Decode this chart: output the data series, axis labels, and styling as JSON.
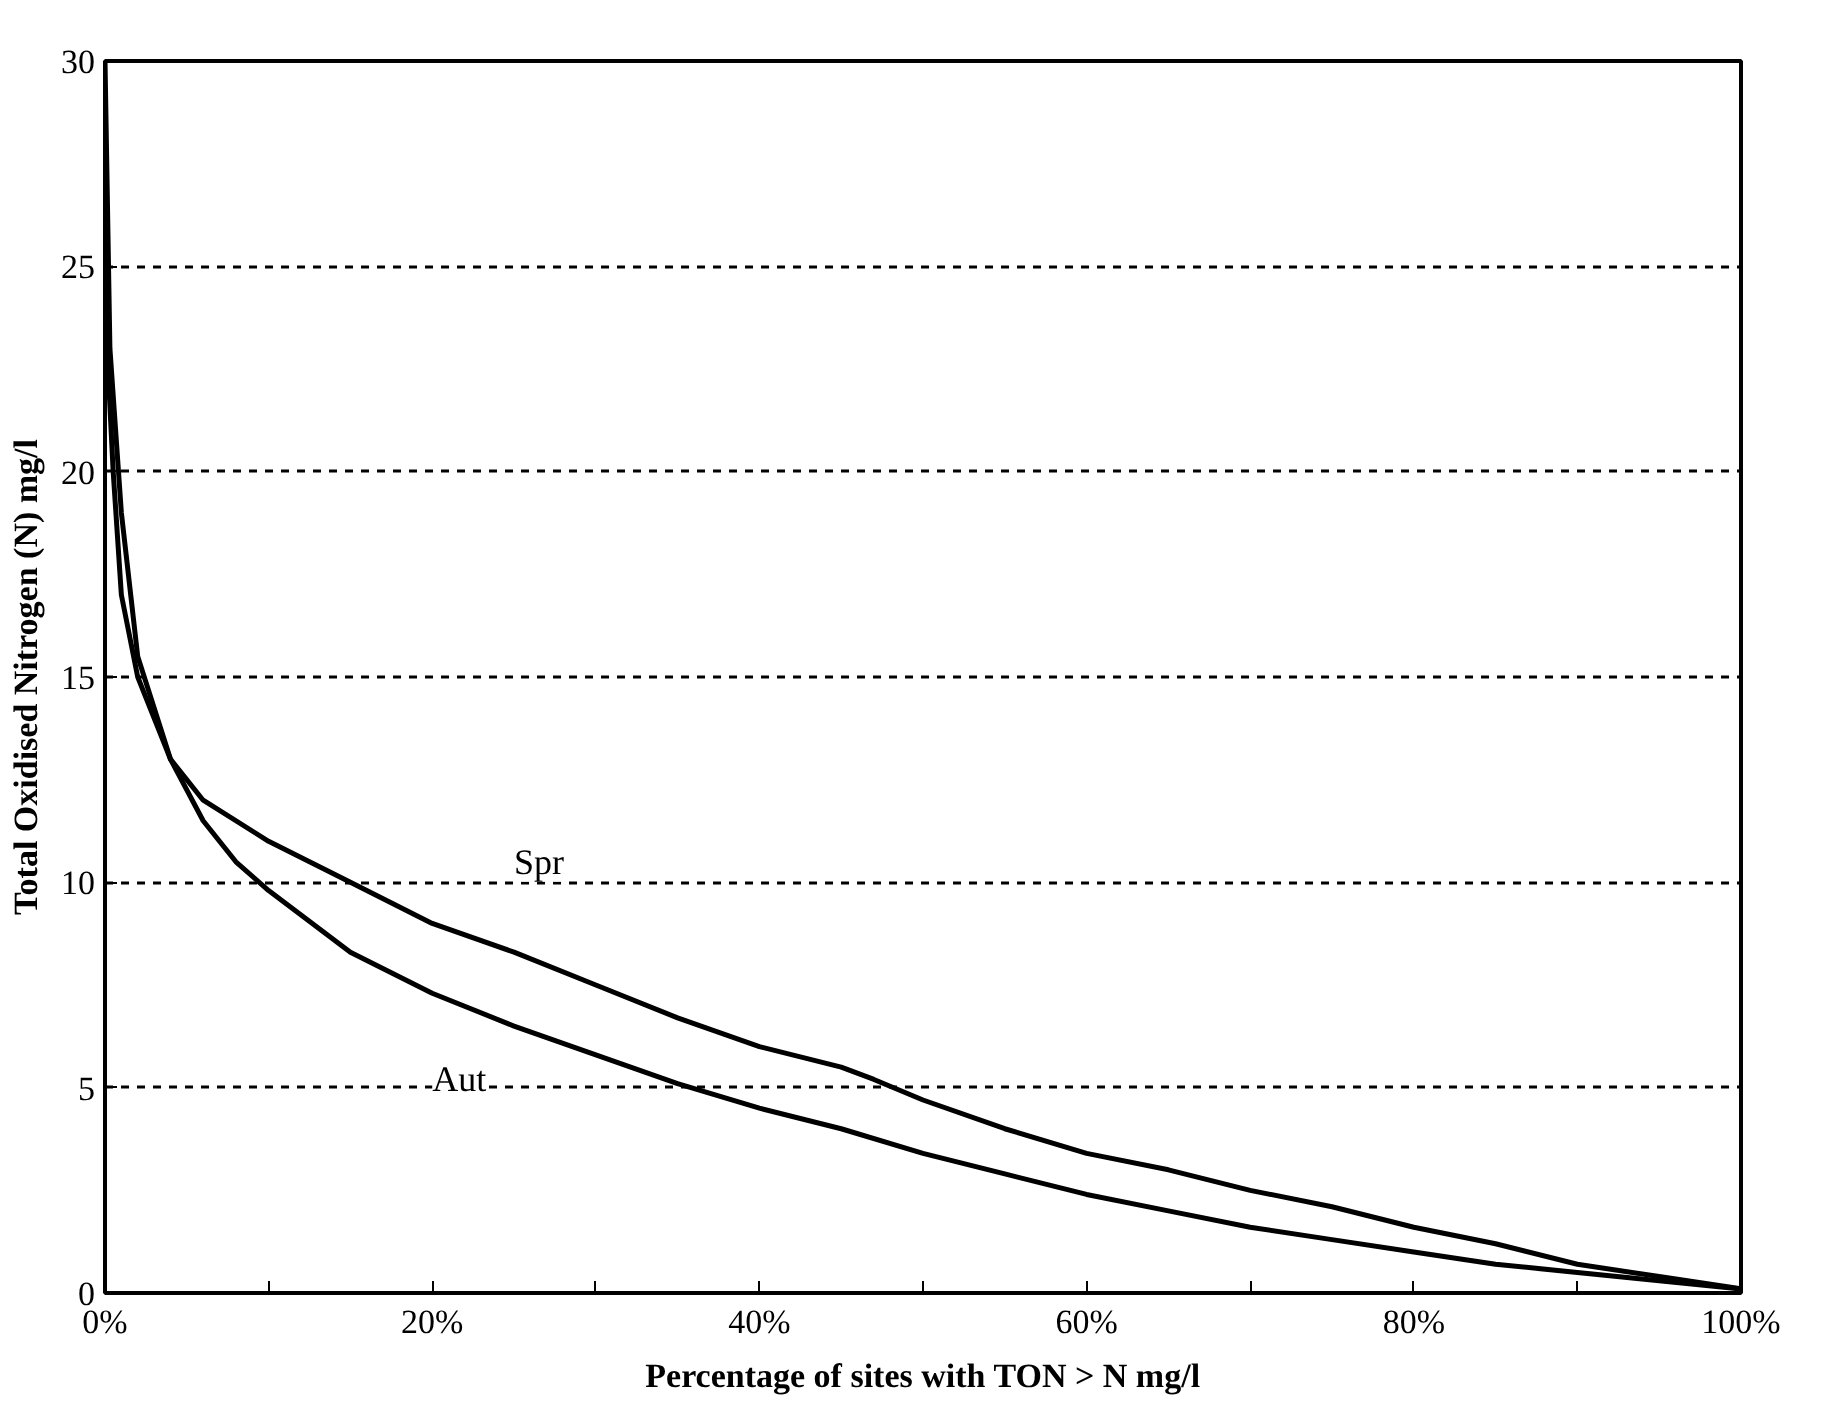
{
  "chart_data": {
    "type": "line",
    "xlabel": "Percentage of sites with TON > N mg/l",
    "ylabel": "Total Oxidised Nitrogen (N) mg/l",
    "series": [
      {
        "name": "Spr",
        "color": "#000000",
        "x": [
          0,
          0.3,
          1,
          2,
          4,
          6,
          10,
          15,
          20,
          25,
          30,
          35,
          40,
          45,
          47,
          50,
          55,
          60,
          65,
          70,
          75,
          80,
          85,
          90,
          95,
          100
        ],
        "values": [
          30,
          23,
          19,
          15.5,
          13,
          12,
          11,
          10,
          9,
          8.3,
          7.5,
          6.7,
          6,
          5.5,
          5.2,
          4.7,
          4,
          3.4,
          3,
          2.5,
          2.1,
          1.6,
          1.2,
          0.7,
          0.4,
          0.1
        ]
      },
      {
        "name": "Aut",
        "color": "#000000",
        "x": [
          0,
          0.5,
          1,
          2,
          4,
          6,
          8,
          10,
          15,
          20,
          25,
          30,
          35,
          40,
          45,
          50,
          55,
          60,
          65,
          70,
          75,
          80,
          85,
          90,
          95,
          100
        ],
        "values": [
          24,
          20,
          17,
          15,
          13,
          11.5,
          10.5,
          9.8,
          8.3,
          7.3,
          6.5,
          5.8,
          5.1,
          4.5,
          4,
          3.4,
          2.9,
          2.4,
          2,
          1.6,
          1.3,
          1,
          0.7,
          0.5,
          0.3,
          0.1
        ]
      }
    ],
    "xlim": [
      0,
      100
    ],
    "ylim": [
      0,
      30
    ],
    "xticks": [
      {
        "value": 0,
        "label": "0%"
      },
      {
        "value": 10,
        "label": null
      },
      {
        "value": 20,
        "label": "20%"
      },
      {
        "value": 30,
        "label": null
      },
      {
        "value": 40,
        "label": "40%"
      },
      {
        "value": 50,
        "label": null
      },
      {
        "value": 60,
        "label": "60%"
      },
      {
        "value": 70,
        "label": null
      },
      {
        "value": 80,
        "label": "80%"
      },
      {
        "value": 90,
        "label": null
      },
      {
        "value": 100,
        "label": "100%"
      }
    ],
    "yticks": [
      0,
      5,
      10,
      15,
      20,
      25,
      30
    ],
    "grid": "y",
    "line_style": "solid"
  }
}
